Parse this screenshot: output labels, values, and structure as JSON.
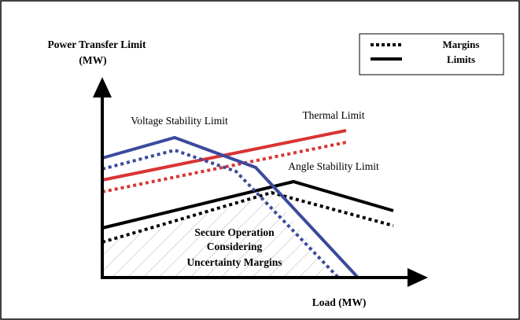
{
  "y_axis_label_line1": "Power Transfer Limit",
  "y_axis_label_line2": "(MW)",
  "x_axis_label": "Load (MW)",
  "legend": {
    "margins_label": "Margins",
    "limits_label": "Limits"
  },
  "curve_labels": {
    "voltage": "Voltage Stability Limit",
    "thermal": "Thermal Limit",
    "angle": "Angle Stability Limit"
  },
  "region_label": {
    "line1": "Secure Operation",
    "line2": "Considering",
    "line3": "Uncertainty Margins"
  },
  "colors": {
    "voltage": "#3b4a9c",
    "thermal": "#d93434",
    "angle": "#000000",
    "hatch": "#b8b8b8"
  }
}
